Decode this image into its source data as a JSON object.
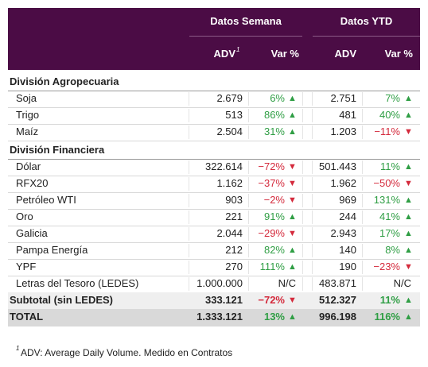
{
  "header": {
    "groups": [
      "Datos Semana",
      "Datos YTD"
    ],
    "columns": [
      "ADV",
      "Var %",
      "ADV",
      "Var %"
    ],
    "column_marker": "1"
  },
  "sections": [
    {
      "title": "División Agropecuaria",
      "rows": [
        {
          "label": "Soja",
          "cells": [
            "2.679",
            "6%",
            "2.751",
            "7%"
          ]
        },
        {
          "label": "Trigo",
          "cells": [
            "513",
            "86%",
            "481",
            "40%"
          ]
        },
        {
          "label": "Maíz",
          "cells": [
            "2.504",
            "31%",
            "1.203",
            "−11%"
          ]
        }
      ]
    },
    {
      "title": "División Financiera",
      "rows": [
        {
          "label": "Dólar",
          "cells": [
            "322.614",
            "−72%",
            "501.443",
            "11%"
          ]
        },
        {
          "label": "RFX20",
          "cells": [
            "1.162",
            "−37%",
            "1.962",
            "−50%"
          ]
        },
        {
          "label": "Petróleo WTI",
          "cells": [
            "903",
            "−2%",
            "969",
            "131%"
          ]
        },
        {
          "label": "Oro",
          "cells": [
            "221",
            "91%",
            "244",
            "41%"
          ]
        },
        {
          "label": "Galicia",
          "cells": [
            "2.044",
            "−29%",
            "2.943",
            "17%"
          ]
        },
        {
          "label": "Pampa Energía",
          "cells": [
            "212",
            "82%",
            "140",
            "8%"
          ]
        },
        {
          "label": "YPF",
          "cells": [
            "270",
            "111%",
            "190",
            "−23%"
          ]
        },
        {
          "label": "Letras del Tesoro (LEDES)",
          "cells": [
            "1.000.000",
            "N/C",
            "483.871",
            "N/C"
          ]
        }
      ]
    }
  ],
  "subtotal": {
    "label": "Subtotal (sin LEDES)",
    "cells": [
      "333.121",
      "−72%",
      "512.327",
      "11%"
    ]
  },
  "total": {
    "label": "TOTAL",
    "cells": [
      "1.333.121",
      "13%",
      "996.198",
      "116%"
    ]
  },
  "footnote": {
    "marker": "1",
    "text": "ADV: Average Daily Volume. Medido en Contratos"
  }
}
